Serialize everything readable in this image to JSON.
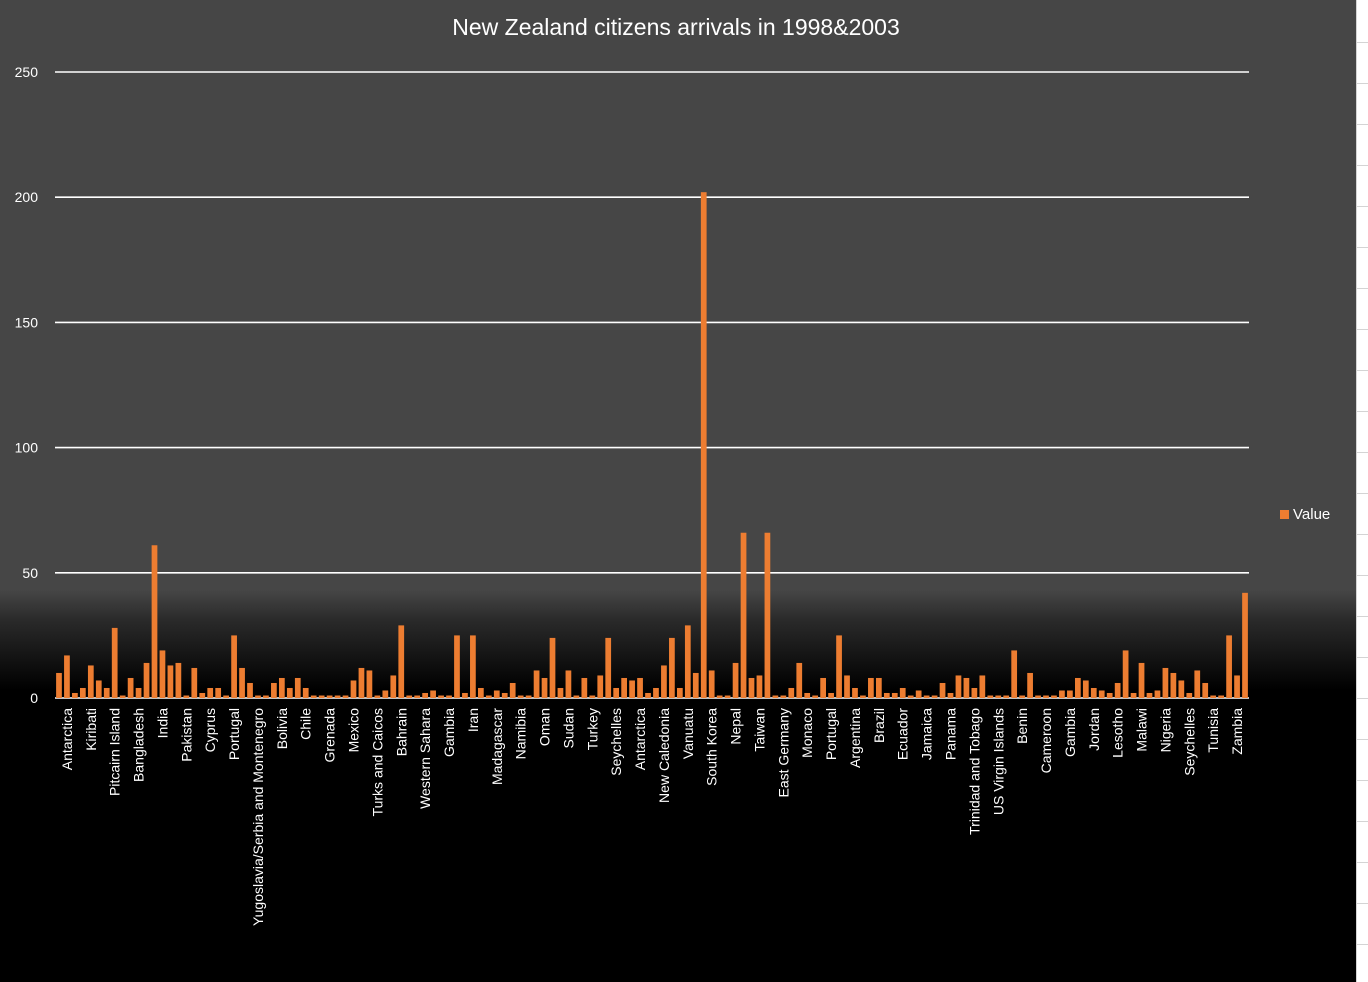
{
  "chart_data": {
    "type": "bar",
    "title": "New Zealand citizens arrivals in 1998&2003",
    "xlabel": "",
    "ylabel": "",
    "ylim": [
      0,
      250
    ],
    "yticks": [
      0,
      50,
      100,
      150,
      200,
      250
    ],
    "grid": true,
    "legend_position": "right",
    "series": [
      {
        "name": "Value",
        "color": "#ED7D31",
        "values": [
          10,
          17,
          2,
          4,
          13,
          7,
          4,
          28,
          1,
          8,
          4,
          14,
          61,
          19,
          13,
          14,
          1,
          12,
          2,
          4,
          4,
          1,
          25,
          12,
          6,
          1,
          1,
          6,
          8,
          4,
          8,
          4,
          1,
          1,
          1,
          1,
          1,
          7,
          12,
          11,
          1,
          3,
          9,
          29,
          1,
          1,
          2,
          3,
          1,
          1,
          25,
          2,
          25,
          4,
          1,
          3,
          2,
          6,
          1,
          1,
          11,
          8,
          24,
          4,
          11,
          1,
          8,
          1,
          9,
          24,
          4,
          8,
          7,
          8,
          2,
          4,
          13,
          24,
          4,
          29,
          10,
          202,
          11,
          1,
          1,
          14,
          66,
          8,
          9,
          66,
          1,
          1,
          4,
          14,
          2,
          1,
          8,
          2,
          25,
          9,
          4,
          1,
          8,
          8,
          2,
          2,
          4,
          1,
          3,
          1,
          1,
          6,
          2,
          9,
          8,
          4,
          9,
          1,
          1,
          1,
          19,
          1,
          10,
          1,
          1,
          1,
          3,
          3,
          8,
          7,
          4,
          3,
          2,
          6,
          19,
          2,
          14,
          2,
          3,
          12,
          10,
          7,
          2,
          11,
          6,
          1,
          1,
          25,
          9,
          42
        ]
      }
    ],
    "tick_labels": [
      "Antarctica",
      "Kiribati",
      "Pitcairn Island",
      "Bangladesh",
      "India",
      "Pakistan",
      "Cyprus",
      "Portugal",
      "Yugoslavia/Serbia and Montenegro",
      "Bolivia",
      "Chile",
      "Grenada",
      "Mexico",
      "Turks and Caicos",
      "Bahrain",
      "Western Sahara",
      "Gambia",
      "Iran",
      "Madagascar",
      "Namibia",
      "Oman",
      "Sudan",
      "Turkey",
      "Seychelles",
      "Antarctica",
      "New Caledonia",
      "Vanuatu",
      "South Korea",
      "Nepal",
      "Taiwan",
      "East Germany",
      "Monaco",
      "Portugal",
      "Argentina",
      "Brazil",
      "Ecuador",
      "Jamaica",
      "Panama",
      "Trinidad and Tobago",
      "US Virgin Islands",
      "Benin",
      "Cameroon",
      "Gambia",
      "Jordan",
      "Lesotho",
      "Malawi",
      "Nigeria",
      "Seychelles",
      "Tunisia",
      "Zambia"
    ]
  }
}
